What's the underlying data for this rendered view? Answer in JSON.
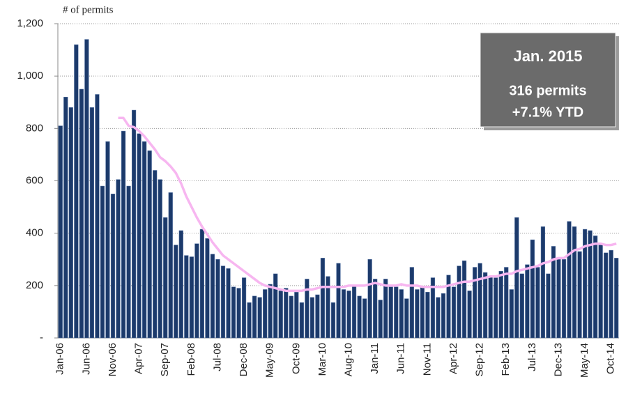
{
  "chart_data": {
    "type": "bar",
    "ylabel": "# of permits",
    "annotation": {
      "title": "Jan. 2015",
      "lines": [
        "316 permits",
        "+7.1% YTD"
      ]
    },
    "categories": [
      "Jan-06",
      null,
      null,
      null,
      null,
      "Jun-06",
      null,
      null,
      null,
      null,
      "Nov-06",
      null,
      null,
      null,
      null,
      "Apr-07",
      null,
      null,
      null,
      null,
      "Sep-07",
      null,
      null,
      null,
      null,
      "Feb-08",
      null,
      null,
      null,
      null,
      "Jul-08",
      null,
      null,
      null,
      null,
      "Dec-08",
      null,
      null,
      null,
      null,
      "May-09",
      null,
      null,
      null,
      null,
      "Oct-09",
      null,
      null,
      null,
      null,
      "Mar-10",
      null,
      null,
      null,
      null,
      "Aug-10",
      null,
      null,
      null,
      null,
      "Jan-11",
      null,
      null,
      null,
      null,
      "Jun-11",
      null,
      null,
      null,
      null,
      "Nov-11",
      null,
      null,
      null,
      null,
      "Apr-12",
      null,
      null,
      null,
      null,
      "Sep-12",
      null,
      null,
      null,
      null,
      "Feb-13",
      null,
      null,
      null,
      null,
      "Jul-13",
      null,
      null,
      null,
      null,
      "Dec-13",
      null,
      null,
      null,
      null,
      "May-14",
      null,
      null,
      null,
      null,
      "Oct-14",
      null
    ],
    "series": [
      {
        "type": "bar",
        "color": "#1c3a6b",
        "values": [
          810,
          920,
          880,
          1120,
          950,
          1140,
          880,
          930,
          580,
          750,
          550,
          605,
          790,
          580,
          870,
          780,
          750,
          715,
          640,
          605,
          460,
          555,
          355,
          410,
          315,
          310,
          360,
          415,
          380,
          320,
          300,
          275,
          265,
          195,
          190,
          230,
          135,
          160,
          155,
          185,
          205,
          245,
          180,
          190,
          160,
          175,
          135,
          225,
          155,
          165,
          305,
          235,
          135,
          285,
          185,
          180,
          200,
          160,
          150,
          300,
          225,
          145,
          225,
          195,
          195,
          185,
          150,
          270,
          185,
          195,
          175,
          230,
          155,
          170,
          240,
          195,
          275,
          295,
          180,
          270,
          285,
          250,
          235,
          230,
          255,
          270,
          185,
          460,
          245,
          280,
          375,
          270,
          425,
          245,
          350,
          300,
          300,
          445,
          425,
          330,
          415,
          410,
          390,
          355,
          325,
          335,
          305
        ]
      },
      {
        "type": "line",
        "color": "#f7b6f0",
        "values": [
          null,
          null,
          null,
          null,
          null,
          null,
          null,
          null,
          null,
          null,
          null,
          840,
          840,
          810,
          805,
          790,
          770,
          745,
          720,
          690,
          675,
          655,
          630,
          590,
          540,
          500,
          460,
          425,
          395,
          365,
          340,
          315,
          300,
          285,
          270,
          255,
          240,
          225,
          210,
          200,
          195,
          190,
          185,
          180,
          180,
          180,
          180,
          185,
          185,
          190,
          195,
          195,
          195,
          195,
          195,
          200,
          200,
          200,
          200,
          205,
          210,
          205,
          200,
          200,
          200,
          205,
          200,
          200,
          200,
          195,
          195,
          195,
          195,
          195,
          200,
          205,
          210,
          215,
          215,
          220,
          225,
          230,
          235,
          235,
          240,
          245,
          245,
          255,
          260,
          265,
          270,
          275,
          285,
          290,
          300,
          305,
          305,
          320,
          335,
          340,
          350,
          355,
          360,
          360,
          355,
          355,
          360
        ]
      }
    ],
    "ylim": [
      0,
      1200
    ],
    "yticks": [
      {
        "value": 0,
        "label": "-"
      },
      200,
      400,
      600,
      800,
      {
        "value": 1000,
        "label": "1,000"
      },
      {
        "value": 1200,
        "label": "1,200"
      }
    ],
    "grid": true
  }
}
